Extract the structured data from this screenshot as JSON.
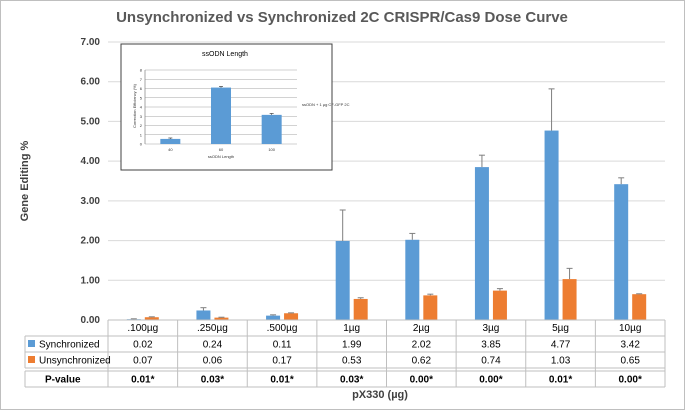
{
  "chart_data": {
    "type": "bar",
    "title": "Unsynchronized vs Synchronized 2C CRISPR/Cas9 Dose Curve",
    "xlabel": "pX330 (µg)",
    "ylabel": "Gene Editing %",
    "ylim": [
      0,
      7
    ],
    "yticks": [
      "0.00",
      "1.00",
      "2.00",
      "3.00",
      "4.00",
      "5.00",
      "6.00",
      "7.00"
    ],
    "grid": true,
    "categories": [
      ".100µg",
      ".250µg",
      ".500µg",
      "1µg",
      "2µg",
      "3µg",
      "5µg",
      "10µg"
    ],
    "series": [
      {
        "name": "Synchronized",
        "color": "#5b9bd5",
        "values": [
          0.02,
          0.24,
          0.11,
          1.99,
          2.02,
          3.85,
          4.77,
          3.42
        ],
        "labels": [
          "0.02",
          "0.24",
          "0.11",
          "1.99",
          "2.02",
          "3.85",
          "4.77",
          "3.42"
        ],
        "errors": [
          0.01,
          0.07,
          0.02,
          0.78,
          0.16,
          0.3,
          1.05,
          0.16
        ]
      },
      {
        "name": "Unsynchronized",
        "color": "#ed7d31",
        "values": [
          0.07,
          0.06,
          0.17,
          0.53,
          0.62,
          0.74,
          1.03,
          0.65
        ],
        "labels": [
          "0.07",
          "0.06",
          "0.17",
          "0.53",
          "0.62",
          "0.74",
          "1.03",
          "0.65"
        ],
        "errors": [
          0.01,
          0.01,
          0.01,
          0.03,
          0.03,
          0.05,
          0.27,
          0.01
        ]
      }
    ],
    "table_extra_row": {
      "name": "P-value",
      "values": [
        "0.01*",
        "0.03*",
        "0.01*",
        "0.03*",
        "0.00*",
        "0.00*",
        "0.01*",
        "0.00*"
      ]
    },
    "inset": {
      "title": "ssODN Length",
      "type": "bar",
      "categories": [
        "40",
        "60",
        "100"
      ],
      "values": [
        0.55,
        6.1,
        3.15
      ],
      "errors": [
        0.1,
        0.12,
        0.15
      ],
      "ylim": [
        0,
        8
      ],
      "yticks": [
        "0",
        "1",
        "2",
        "3",
        "4",
        "5",
        "6",
        "7",
        "8"
      ],
      "xlabel": "ssODN Length",
      "ylabel": "Correction Efficiency (%)",
      "legend": "ssODN + 1 µg CF-GFP 2C",
      "color": "#5b9bd5"
    }
  }
}
